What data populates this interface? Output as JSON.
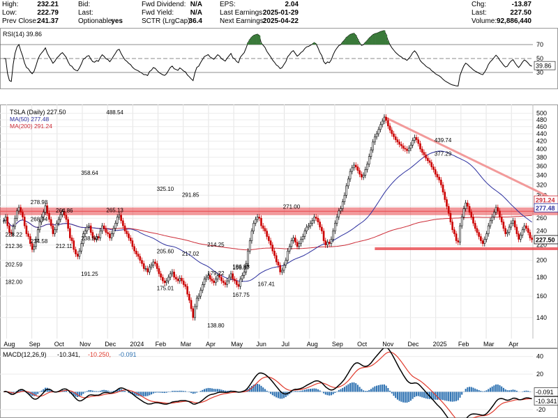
{
  "header": {
    "col1": [
      {
        "label": "High:",
        "value": "232.21"
      },
      {
        "label": "Low:",
        "value": "222.79"
      },
      {
        "label": "Prev Close:",
        "value": "241.37"
      }
    ],
    "col2": [
      {
        "label": "Bid:",
        "value": ""
      },
      {
        "label": "Last:",
        "value": ""
      },
      {
        "label": "Optionable:",
        "value": "yes"
      }
    ],
    "col3": [
      {
        "label": "Fwd Dividend:",
        "value": "N/A"
      },
      {
        "label": "Fwd Yield:",
        "value": "N/A"
      },
      {
        "label": "SCTR (LrgCap):",
        "value": "36.4"
      }
    ],
    "col4": [
      {
        "label": "EPS:",
        "value": "2.04"
      },
      {
        "label": "Last Earnings:",
        "value": "2025-01-29"
      },
      {
        "label": "Next Earnings:",
        "value": "2025-04-22"
      }
    ],
    "col5": [
      {
        "label": "Chg:",
        "value": "-13.87"
      },
      {
        "label": "Last:",
        "value": "227.50"
      },
      {
        "label": "Volume:",
        "value": "92,886,440"
      }
    ]
  },
  "colors": {
    "price_up": "#000000",
    "price_down": "#cc0000",
    "ma50": "#2b2f9e",
    "ma200": "#cc2b36",
    "resistance_band": "#e8464b",
    "trendline": "#f29a9a",
    "rsi_line": "#000000",
    "rsi_fill": "#3a7a3a",
    "macd_line": "#000000",
    "macd_signal": "#e0392b",
    "histogram": "#2a6fb0"
  },
  "chart_data": [
    {
      "type": "line",
      "panel": "rsi",
      "legend": "RSI(14) 39.86",
      "ylim": [
        10,
        90
      ],
      "y_ticks": [
        70,
        50,
        30
      ],
      "reference_lines": [
        70,
        50,
        30
      ],
      "current_value_label": "39.86",
      "grid": true
    },
    {
      "type": "candlestick",
      "panel": "price",
      "title": "TSLA (Daily) 227.50",
      "legend": [
        {
          "name": "MA(50) 277.48",
          "color": "#2b2f9e"
        },
        {
          "name": "MA(200) 291.24",
          "color": "#cc2b36"
        }
      ],
      "x_labels": [
        "Aug",
        "Sep",
        "Oct",
        "Nov",
        "Dec",
        "2024",
        "Feb",
        "Mar",
        "Apr",
        "May",
        "Jun",
        "Jul",
        "Aug",
        "Sep",
        "Oct",
        "Nov",
        "Dec",
        "2025",
        "Feb",
        "Mar",
        "Apr"
      ],
      "y_ticks": [
        140,
        160,
        180,
        200,
        220,
        240,
        260,
        280,
        300,
        320,
        340,
        360,
        380,
        400,
        420,
        440,
        460,
        480,
        500
      ],
      "ylim": [
        125,
        510
      ],
      "scale": "log",
      "closes": [
        256,
        262,
        248,
        238,
        236,
        247,
        260,
        272,
        278,
        270,
        262,
        248,
        236,
        232,
        222,
        214,
        218,
        228,
        242,
        254,
        262,
        270,
        281,
        268,
        258,
        248,
        236,
        242,
        252,
        258,
        266,
        271,
        265,
        258,
        244,
        230,
        226,
        214,
        208,
        205,
        212,
        222,
        236,
        240,
        246,
        248,
        238,
        230,
        228,
        232,
        230,
        240,
        248,
        244,
        238,
        236,
        230,
        236,
        244,
        252,
        262,
        265,
        256,
        248,
        240,
        236,
        230,
        226,
        218,
        212,
        208,
        205,
        200,
        196,
        190,
        190,
        186,
        192,
        194,
        198,
        196,
        190,
        184,
        180,
        176,
        174,
        176,
        180,
        184,
        186,
        180,
        178,
        176,
        179,
        176,
        172,
        170,
        162,
        156,
        148,
        140,
        150,
        158,
        160,
        166,
        172,
        178,
        180,
        182,
        178,
        176,
        174,
        178,
        182,
        180,
        176,
        174,
        172,
        176,
        180,
        184,
        178,
        176,
        172,
        170,
        178,
        182,
        186,
        196,
        212,
        226,
        240,
        252,
        258,
        262,
        260,
        248,
        244,
        240,
        232,
        226,
        220,
        212,
        206,
        198,
        194,
        186,
        188,
        194,
        200,
        212,
        218,
        226,
        230,
        224,
        218,
        222,
        228,
        232,
        240,
        246,
        248,
        252,
        256,
        262,
        260,
        254,
        246,
        240,
        226,
        220,
        224,
        222,
        228,
        240,
        252,
        262,
        272,
        276,
        288,
        300,
        318,
        332,
        348,
        356,
        362,
        358,
        350,
        342,
        336,
        340,
        352,
        364,
        382,
        398,
        418,
        432,
        440,
        452,
        466,
        476,
        488,
        478,
        462,
        450,
        440,
        432,
        424,
        418,
        412,
        408,
        402,
        400,
        396,
        402,
        410,
        422,
        430,
        424,
        414,
        400,
        392,
        386,
        378,
        372,
        368,
        358,
        352,
        342,
        336,
        330,
        320,
        306,
        292,
        280,
        268,
        254,
        242,
        236,
        226,
        224,
        248,
        262,
        276,
        286,
        280,
        270,
        262,
        252,
        244,
        238,
        232,
        226,
        222,
        228,
        236,
        248,
        256,
        262,
        270,
        278,
        272,
        262,
        254,
        244,
        236,
        238,
        246,
        252,
        256,
        246,
        236,
        228,
        234,
        242,
        248,
        244,
        238,
        230,
        227.5
      ],
      "ma50": [
        null
      ],
      "resistance_band": {
        "from": 265,
        "to": 278
      },
      "support_line": 215,
      "trendline": {
        "from_label": "488.54",
        "to_label": "292"
      },
      "annotations": [
        {
          "text": "278.98",
          "x": "Sep",
          "y": 278.98
        },
        {
          "text": "268.94",
          "x": "Sep",
          "y": 268.94
        },
        {
          "text": "265.13",
          "x": "Dec",
          "y": 265.13
        },
        {
          "text": "234.58",
          "x": "Sep",
          "y": 234.58
        },
        {
          "text": "212.36",
          "x": "Aug",
          "y": 212.36
        },
        {
          "text": "191.25",
          "x": "Nov",
          "y": 191.25
        },
        {
          "text": "205.60",
          "x": "Feb",
          "y": 205.6
        },
        {
          "text": "175.01",
          "x": "Feb",
          "y": 175.01
        },
        {
          "text": "179.22",
          "x": "Apr",
          "y": 179.22
        },
        {
          "text": "198.87",
          "x": "May",
          "y": 198.87
        },
        {
          "text": "186.88",
          "x": "May",
          "y": 186.88
        },
        {
          "text": "167.75",
          "x": "May",
          "y": 167.75
        },
        {
          "text": "167.41",
          "x": "Jun",
          "y": 167.41
        },
        {
          "text": "138.80",
          "x": "Apr",
          "y": 138.8
        },
        {
          "text": "271.00",
          "x": "Jul",
          "y": 271.0
        },
        {
          "text": "182.00",
          "x": "Aug",
          "y": 182.0
        },
        {
          "text": "228.22",
          "x": "Aug",
          "y": 228.22
        },
        {
          "text": "202.59",
          "x": "Aug",
          "y": 202.59
        },
        {
          "text": "264.86",
          "x": "Oct",
          "y": 264.86
        },
        {
          "text": "238.88",
          "x": "Nov",
          "y": 238.88
        },
        {
          "text": "212.11",
          "x": "Oct",
          "y": 212.11
        },
        {
          "text": "358.64",
          "x": "Nov",
          "y": 358.64
        },
        {
          "text": "488.54",
          "x": "Dec",
          "y": 488.54
        },
        {
          "text": "439.74",
          "x": "2025",
          "y": 439.74
        },
        {
          "text": "377.29",
          "x": "2025",
          "y": 377.29
        },
        {
          "text": "325.10",
          "x": "Feb",
          "y": 325.1
        },
        {
          "text": "291.85",
          "x": "Mar",
          "y": 291.85
        },
        {
          "text": "217.02",
          "x": "Mar",
          "y": 217.02
        },
        {
          "text": "214.25",
          "x": "Apr",
          "y": 214.25
        }
      ],
      "right_labels": [
        {
          "text": "291.24",
          "color": "#cc2b36",
          "y": 291.24
        },
        {
          "text": "277.48",
          "color": "#2b2f9e",
          "y": 277.48
        },
        {
          "text": "227.50",
          "color": "#000000",
          "y": 227.5
        }
      ]
    },
    {
      "type": "line",
      "panel": "macd",
      "legend_prefix": "MACD(12,26,9)",
      "legend_values": [
        {
          "text": "-10.341,",
          "color": "#000000"
        },
        {
          "text": "-10.250,",
          "color": "#e0392b"
        },
        {
          "text": "-0.091",
          "color": "#2a6fb0"
        }
      ],
      "y_ticks": [
        40,
        20,
        0,
        -20
      ],
      "ylim": [
        -28,
        46
      ],
      "right_labels": [
        {
          "text": "-0.091",
          "y": -0.091
        },
        {
          "text": "-10.341",
          "y": -10.341
        }
      ]
    }
  ]
}
